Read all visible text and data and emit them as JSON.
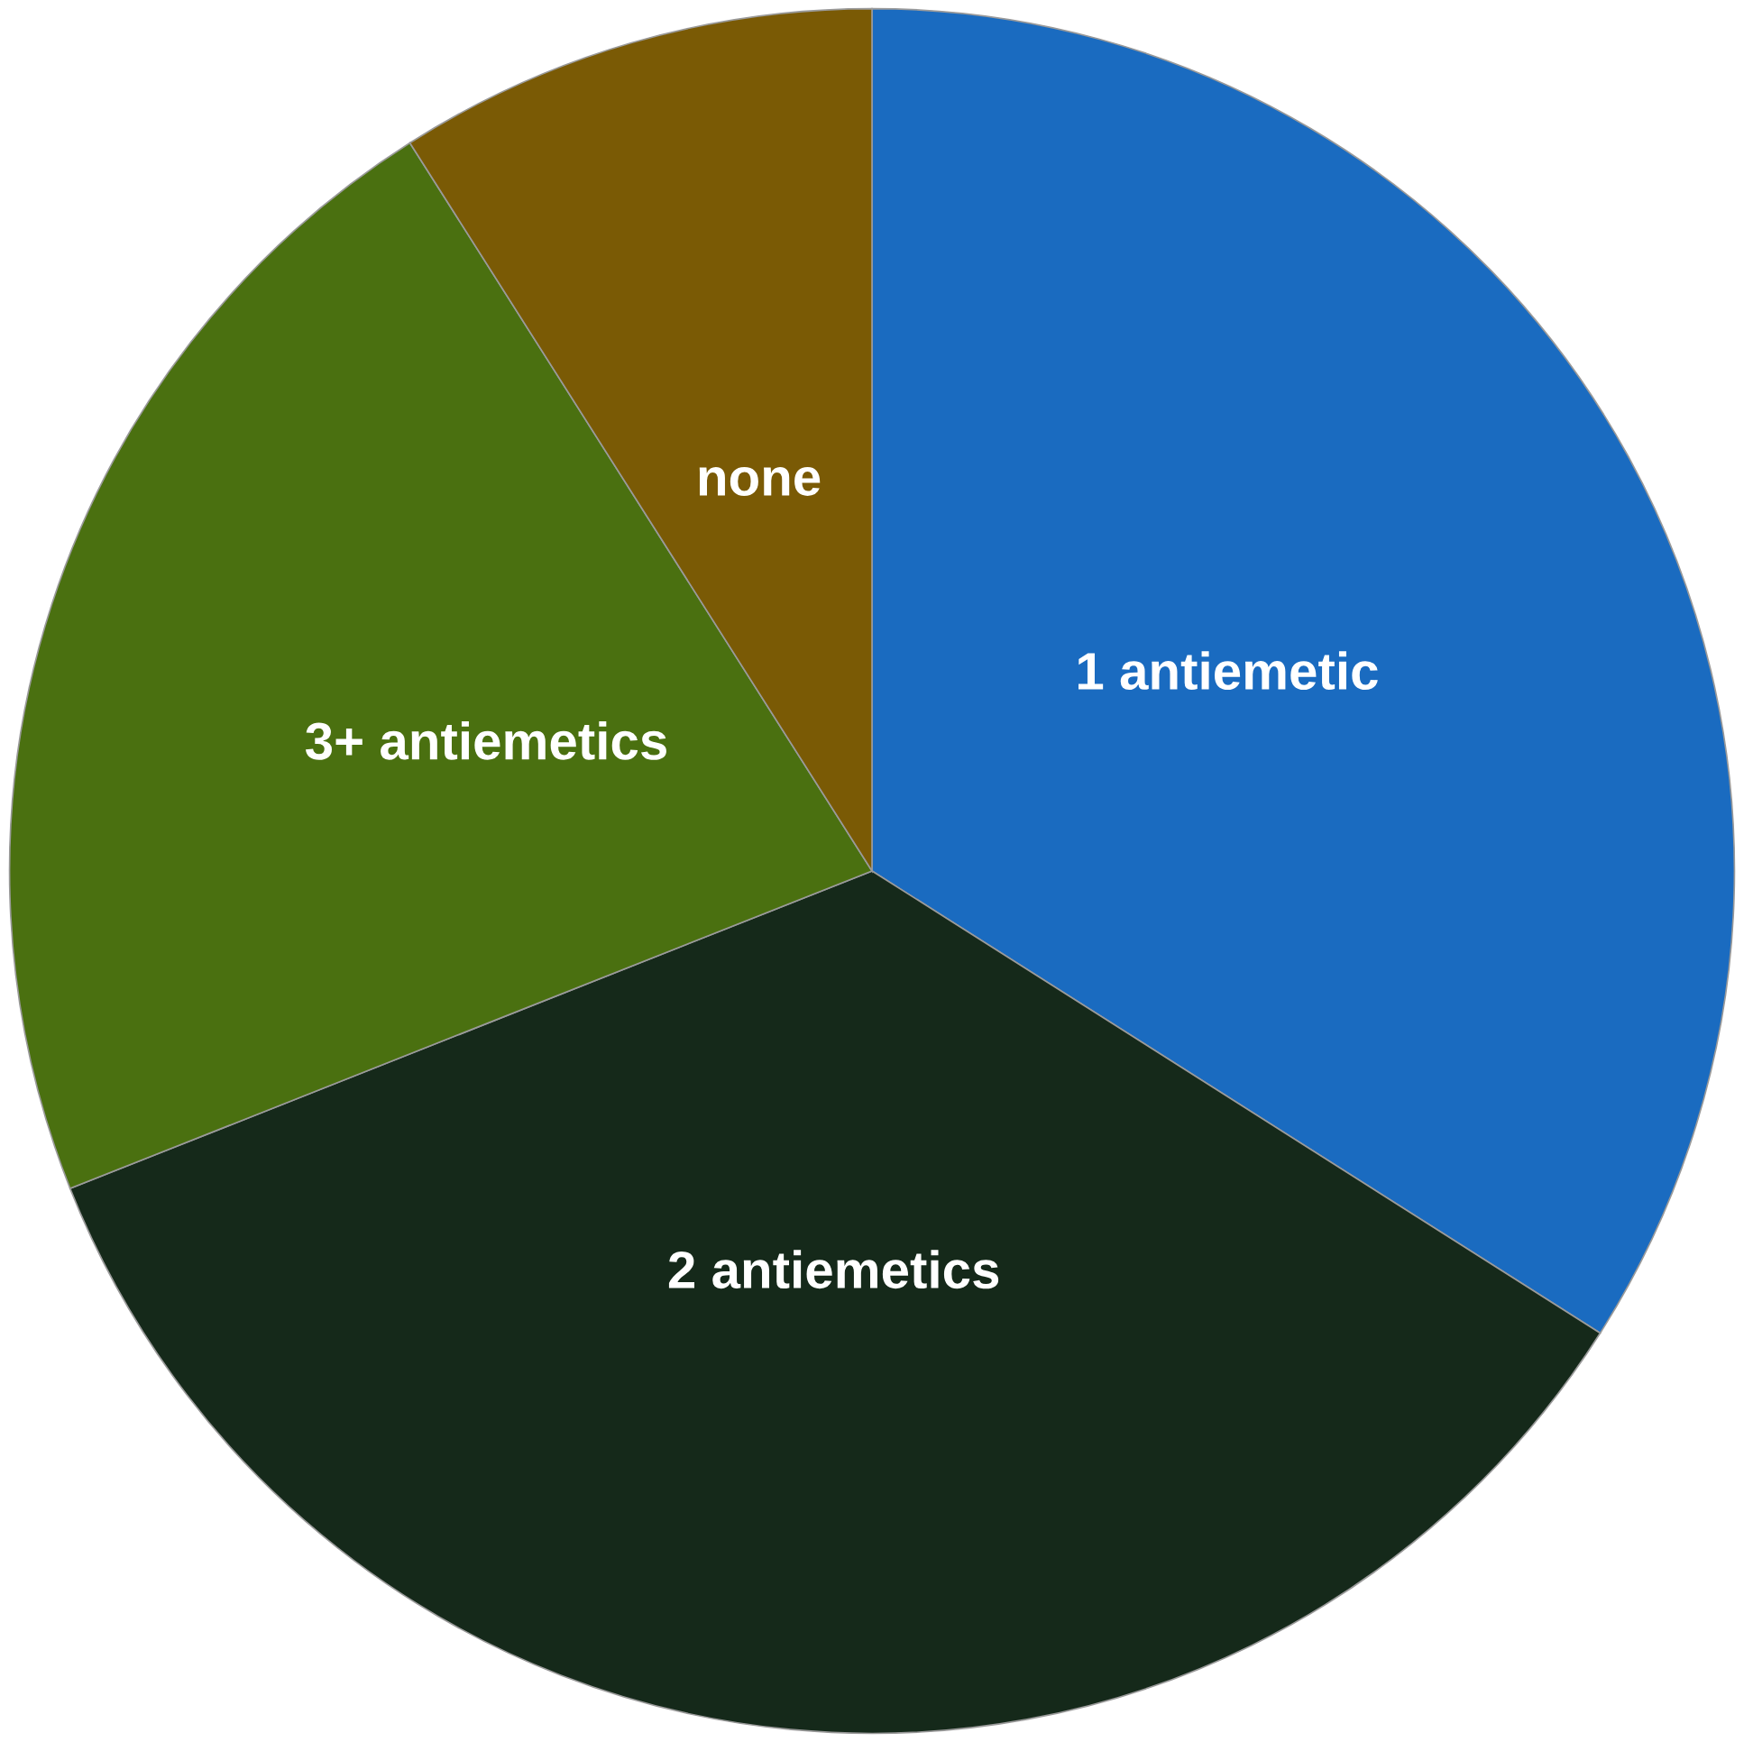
{
  "chart_data": {
    "type": "pie",
    "categories": [
      "1 antiemetic",
      "2 antiemetics",
      "3+ antiemetics",
      "none"
    ],
    "values": [
      34,
      35,
      22,
      9
    ],
    "colors": [
      "#1a6bc0",
      "#15291a",
      "#4a7010",
      "#7a5a05"
    ]
  }
}
